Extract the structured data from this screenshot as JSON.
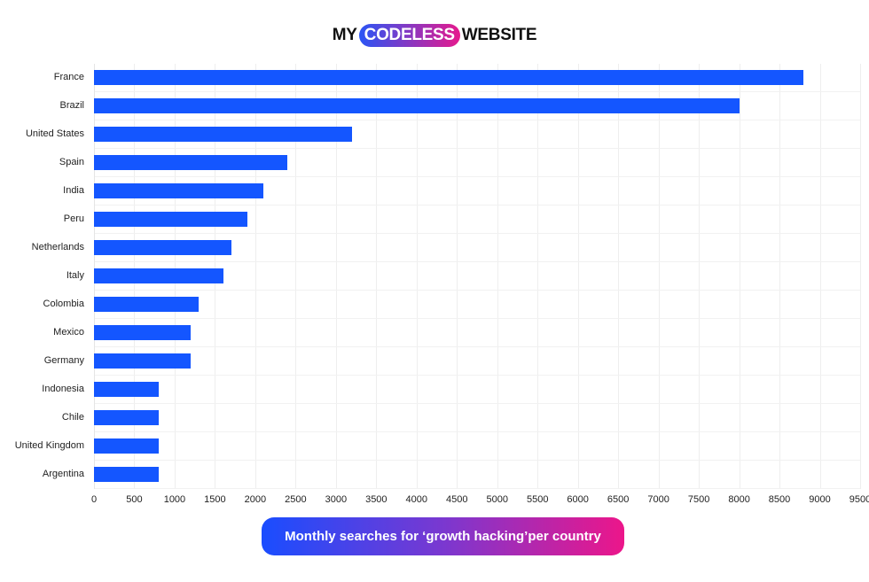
{
  "logo": {
    "left": "MY",
    "middle": "CODELESS",
    "right": "WEBSITE"
  },
  "caption": "Monthly searches for ‘growth hacking’per country",
  "colors": {
    "bar": "#1456ff",
    "gradient_start": "#1a4dff",
    "gradient_end": "#ec168a"
  },
  "chart_data": {
    "type": "bar",
    "orientation": "horizontal",
    "title": "Monthly searches for 'growth hacking' per country",
    "categories": [
      "France",
      "Brazil",
      "United States",
      "Spain",
      "India",
      "Peru",
      "Netherlands",
      "Italy",
      "Colombia",
      "Mexico",
      "Germany",
      "Indonesia",
      "Chile",
      "United Kingdom",
      "Argentina"
    ],
    "values": [
      8800,
      8000,
      3200,
      2400,
      2100,
      1900,
      1700,
      1600,
      1300,
      1200,
      1200,
      800,
      800,
      800,
      800
    ],
    "xlabel": "",
    "ylabel": "",
    "xlim": [
      0,
      9500
    ],
    "xticks": [
      "0",
      "500",
      "1000",
      "1500",
      "2000",
      "2500",
      "3000",
      "3500",
      "4000",
      "4500",
      "5000",
      "5500",
      "6000",
      "6500",
      "7000",
      "7500",
      "8000",
      "8500",
      "9000",
      "9500"
    ],
    "grid": true,
    "legend": null
  }
}
